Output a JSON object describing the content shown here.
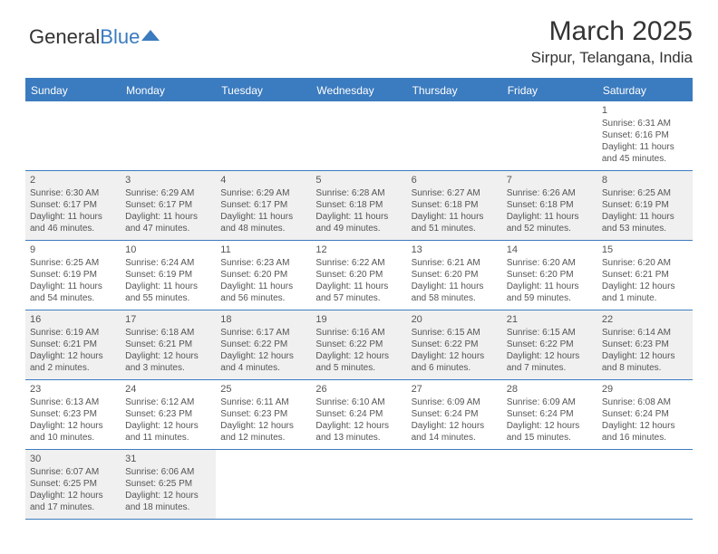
{
  "logo": {
    "text1": "General",
    "text2": "Blue"
  },
  "title": "March 2025",
  "location": "Sirpur, Telangana, India",
  "headerColor": "#3b7bbf",
  "weekdays": [
    "Sunday",
    "Monday",
    "Tuesday",
    "Wednesday",
    "Thursday",
    "Friday",
    "Saturday"
  ],
  "weeks": [
    [
      {
        "n": "",
        "sr": "",
        "ss": "",
        "dl": "",
        "filled": false
      },
      {
        "n": "",
        "sr": "",
        "ss": "",
        "dl": "",
        "filled": false
      },
      {
        "n": "",
        "sr": "",
        "ss": "",
        "dl": "",
        "filled": false
      },
      {
        "n": "",
        "sr": "",
        "ss": "",
        "dl": "",
        "filled": false
      },
      {
        "n": "",
        "sr": "",
        "ss": "",
        "dl": "",
        "filled": false
      },
      {
        "n": "",
        "sr": "",
        "ss": "",
        "dl": "",
        "filled": false
      },
      {
        "n": "1",
        "sr": "Sunrise: 6:31 AM",
        "ss": "Sunset: 6:16 PM",
        "dl": "Daylight: 11 hours and 45 minutes.",
        "filled": false
      }
    ],
    [
      {
        "n": "2",
        "sr": "Sunrise: 6:30 AM",
        "ss": "Sunset: 6:17 PM",
        "dl": "Daylight: 11 hours and 46 minutes.",
        "filled": true
      },
      {
        "n": "3",
        "sr": "Sunrise: 6:29 AM",
        "ss": "Sunset: 6:17 PM",
        "dl": "Daylight: 11 hours and 47 minutes.",
        "filled": true
      },
      {
        "n": "4",
        "sr": "Sunrise: 6:29 AM",
        "ss": "Sunset: 6:17 PM",
        "dl": "Daylight: 11 hours and 48 minutes.",
        "filled": true
      },
      {
        "n": "5",
        "sr": "Sunrise: 6:28 AM",
        "ss": "Sunset: 6:18 PM",
        "dl": "Daylight: 11 hours and 49 minutes.",
        "filled": true
      },
      {
        "n": "6",
        "sr": "Sunrise: 6:27 AM",
        "ss": "Sunset: 6:18 PM",
        "dl": "Daylight: 11 hours and 51 minutes.",
        "filled": true
      },
      {
        "n": "7",
        "sr": "Sunrise: 6:26 AM",
        "ss": "Sunset: 6:18 PM",
        "dl": "Daylight: 11 hours and 52 minutes.",
        "filled": true
      },
      {
        "n": "8",
        "sr": "Sunrise: 6:25 AM",
        "ss": "Sunset: 6:19 PM",
        "dl": "Daylight: 11 hours and 53 minutes.",
        "filled": true
      }
    ],
    [
      {
        "n": "9",
        "sr": "Sunrise: 6:25 AM",
        "ss": "Sunset: 6:19 PM",
        "dl": "Daylight: 11 hours and 54 minutes.",
        "filled": false
      },
      {
        "n": "10",
        "sr": "Sunrise: 6:24 AM",
        "ss": "Sunset: 6:19 PM",
        "dl": "Daylight: 11 hours and 55 minutes.",
        "filled": false
      },
      {
        "n": "11",
        "sr": "Sunrise: 6:23 AM",
        "ss": "Sunset: 6:20 PM",
        "dl": "Daylight: 11 hours and 56 minutes.",
        "filled": false
      },
      {
        "n": "12",
        "sr": "Sunrise: 6:22 AM",
        "ss": "Sunset: 6:20 PM",
        "dl": "Daylight: 11 hours and 57 minutes.",
        "filled": false
      },
      {
        "n": "13",
        "sr": "Sunrise: 6:21 AM",
        "ss": "Sunset: 6:20 PM",
        "dl": "Daylight: 11 hours and 58 minutes.",
        "filled": false
      },
      {
        "n": "14",
        "sr": "Sunrise: 6:20 AM",
        "ss": "Sunset: 6:20 PM",
        "dl": "Daylight: 11 hours and 59 minutes.",
        "filled": false
      },
      {
        "n": "15",
        "sr": "Sunrise: 6:20 AM",
        "ss": "Sunset: 6:21 PM",
        "dl": "Daylight: 12 hours and 1 minute.",
        "filled": false
      }
    ],
    [
      {
        "n": "16",
        "sr": "Sunrise: 6:19 AM",
        "ss": "Sunset: 6:21 PM",
        "dl": "Daylight: 12 hours and 2 minutes.",
        "filled": true
      },
      {
        "n": "17",
        "sr": "Sunrise: 6:18 AM",
        "ss": "Sunset: 6:21 PM",
        "dl": "Daylight: 12 hours and 3 minutes.",
        "filled": true
      },
      {
        "n": "18",
        "sr": "Sunrise: 6:17 AM",
        "ss": "Sunset: 6:22 PM",
        "dl": "Daylight: 12 hours and 4 minutes.",
        "filled": true
      },
      {
        "n": "19",
        "sr": "Sunrise: 6:16 AM",
        "ss": "Sunset: 6:22 PM",
        "dl": "Daylight: 12 hours and 5 minutes.",
        "filled": true
      },
      {
        "n": "20",
        "sr": "Sunrise: 6:15 AM",
        "ss": "Sunset: 6:22 PM",
        "dl": "Daylight: 12 hours and 6 minutes.",
        "filled": true
      },
      {
        "n": "21",
        "sr": "Sunrise: 6:15 AM",
        "ss": "Sunset: 6:22 PM",
        "dl": "Daylight: 12 hours and 7 minutes.",
        "filled": true
      },
      {
        "n": "22",
        "sr": "Sunrise: 6:14 AM",
        "ss": "Sunset: 6:23 PM",
        "dl": "Daylight: 12 hours and 8 minutes.",
        "filled": true
      }
    ],
    [
      {
        "n": "23",
        "sr": "Sunrise: 6:13 AM",
        "ss": "Sunset: 6:23 PM",
        "dl": "Daylight: 12 hours and 10 minutes.",
        "filled": false
      },
      {
        "n": "24",
        "sr": "Sunrise: 6:12 AM",
        "ss": "Sunset: 6:23 PM",
        "dl": "Daylight: 12 hours and 11 minutes.",
        "filled": false
      },
      {
        "n": "25",
        "sr": "Sunrise: 6:11 AM",
        "ss": "Sunset: 6:23 PM",
        "dl": "Daylight: 12 hours and 12 minutes.",
        "filled": false
      },
      {
        "n": "26",
        "sr": "Sunrise: 6:10 AM",
        "ss": "Sunset: 6:24 PM",
        "dl": "Daylight: 12 hours and 13 minutes.",
        "filled": false
      },
      {
        "n": "27",
        "sr": "Sunrise: 6:09 AM",
        "ss": "Sunset: 6:24 PM",
        "dl": "Daylight: 12 hours and 14 minutes.",
        "filled": false
      },
      {
        "n": "28",
        "sr": "Sunrise: 6:09 AM",
        "ss": "Sunset: 6:24 PM",
        "dl": "Daylight: 12 hours and 15 minutes.",
        "filled": false
      },
      {
        "n": "29",
        "sr": "Sunrise: 6:08 AM",
        "ss": "Sunset: 6:24 PM",
        "dl": "Daylight: 12 hours and 16 minutes.",
        "filled": false
      }
    ],
    [
      {
        "n": "30",
        "sr": "Sunrise: 6:07 AM",
        "ss": "Sunset: 6:25 PM",
        "dl": "Daylight: 12 hours and 17 minutes.",
        "filled": true
      },
      {
        "n": "31",
        "sr": "Sunrise: 6:06 AM",
        "ss": "Sunset: 6:25 PM",
        "dl": "Daylight: 12 hours and 18 minutes.",
        "filled": true
      },
      {
        "n": "",
        "sr": "",
        "ss": "",
        "dl": "",
        "filled": false
      },
      {
        "n": "",
        "sr": "",
        "ss": "",
        "dl": "",
        "filled": false
      },
      {
        "n": "",
        "sr": "",
        "ss": "",
        "dl": "",
        "filled": false
      },
      {
        "n": "",
        "sr": "",
        "ss": "",
        "dl": "",
        "filled": false
      },
      {
        "n": "",
        "sr": "",
        "ss": "",
        "dl": "",
        "filled": false
      }
    ]
  ]
}
